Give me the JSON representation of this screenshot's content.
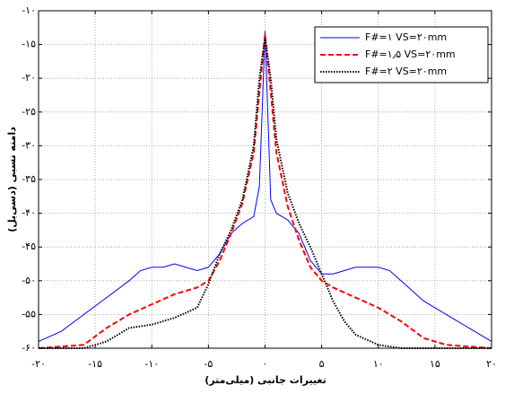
{
  "chart_data": {
    "type": "line",
    "x_label": "تغییرات جانبی (میلی‌متر)",
    "y_label": "دامنه نسبی (دسی‌بل)",
    "xlim": [
      -20,
      20
    ],
    "ylim": [
      -60,
      -10
    ],
    "xticks": [
      {
        "value": -20,
        "label": "-۲۰"
      },
      {
        "value": -15,
        "label": "-۱۵"
      },
      {
        "value": -10,
        "label": "-۱۰"
      },
      {
        "value": -5,
        "label": "-۵"
      },
      {
        "value": 0,
        "label": "۰"
      },
      {
        "value": 5,
        "label": "۵"
      },
      {
        "value": 10,
        "label": "۱۰"
      },
      {
        "value": 15,
        "label": "۱۵"
      },
      {
        "value": 20,
        "label": "۲۰"
      }
    ],
    "yticks": [
      {
        "value": -10,
        "label": "-۱۰"
      },
      {
        "value": -15,
        "label": "-۱۵"
      },
      {
        "value": -20,
        "label": "-۲۰"
      },
      {
        "value": -25,
        "label": "-۲۵"
      },
      {
        "value": -30,
        "label": "-۳۰"
      },
      {
        "value": -35,
        "label": "-۳۵"
      },
      {
        "value": -40,
        "label": "-۴۰"
      },
      {
        "value": -45,
        "label": "-۴۵"
      },
      {
        "value": -50,
        "label": "-۵۰"
      },
      {
        "value": -55,
        "label": "-۵۵"
      },
      {
        "value": -60,
        "label": "-۶۰"
      }
    ],
    "grid": true,
    "legend": "upper right",
    "series": [
      {
        "name": "F#=۱   VS=۲۰mm",
        "color": "#0000ff",
        "dash": "solid",
        "x": [
          -20,
          -18,
          -16,
          -14,
          -12,
          -11,
          -10,
          -9,
          -8,
          -7,
          -6,
          -5,
          -4,
          -3,
          -2,
          -1,
          -0.5,
          0,
          0.5,
          1,
          2,
          3,
          4,
          5,
          6,
          7,
          8,
          9,
          10,
          11,
          12,
          14,
          16,
          18,
          20
        ],
        "values": [
          -59,
          -57.5,
          -55,
          -52.5,
          -50,
          -48.5,
          -48,
          -48,
          -47.5,
          -48,
          -48.5,
          -48,
          -46,
          -43,
          -41.5,
          -40.5,
          -36,
          -13,
          -38,
          -40,
          -41,
          -43,
          -47,
          -49,
          -49,
          -48.5,
          -48,
          -48,
          -48,
          -48.5,
          -50,
          -53,
          -55,
          -57,
          -59
        ]
      },
      {
        "name": "F#=۱٫۵  VS=۲۰mm",
        "color": "#ff0000",
        "dash": "dashed",
        "x": [
          -20,
          -16,
          -14,
          -12,
          -10,
          -8,
          -6,
          -5,
          -4,
          -3,
          -2,
          -1,
          -0.5,
          0,
          0.5,
          1,
          2,
          3,
          4,
          5,
          6,
          8,
          10,
          12,
          14,
          16,
          20
        ],
        "values": [
          -60,
          -59.5,
          -57,
          -55,
          -53.5,
          -52,
          -51,
          -50,
          -47,
          -43,
          -38.5,
          -31,
          -22,
          -13.5,
          -22,
          -31,
          -39,
          -44,
          -48,
          -50,
          -51,
          -52.5,
          -54,
          -56,
          -58.5,
          -59.5,
          -60
        ]
      },
      {
        "name": "F#=۲  VS=۲۰mm",
        "color": "#000000",
        "dash": "dotted",
        "x": [
          -20,
          -16,
          -14,
          -12,
          -10,
          -8,
          -6,
          -5,
          -4,
          -3,
          -2,
          -1,
          -0.5,
          0,
          0.5,
          1,
          2,
          3,
          4,
          5,
          6,
          7,
          8,
          10,
          12,
          16,
          20
        ],
        "values": [
          -60,
          -60,
          -59,
          -57,
          -56.5,
          -55.5,
          -54,
          -50.5,
          -46,
          -42.5,
          -38,
          -30,
          -20,
          -14,
          -20,
          -29,
          -37,
          -41.5,
          -45,
          -49,
          -53,
          -56,
          -58,
          -59.5,
          -60,
          -60,
          -60
        ]
      }
    ]
  }
}
